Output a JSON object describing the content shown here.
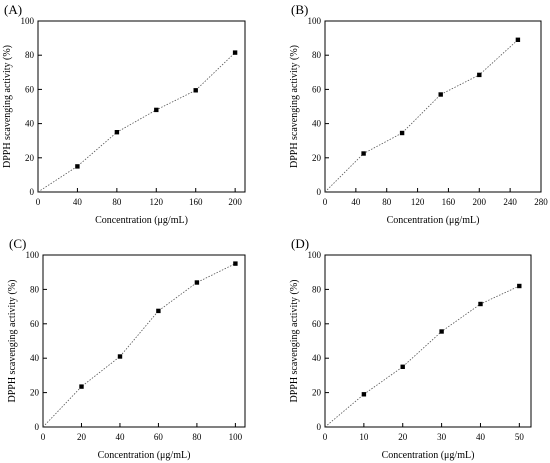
{
  "chart_data": [
    {
      "type": "line",
      "panel_label": "(A)",
      "xlabel": "Concentration (μg/mL)",
      "ylabel": "DPPH scavenging activity (%)",
      "xlim": [
        0,
        210
      ],
      "ylim": [
        0,
        100
      ],
      "xticks": [
        0,
        40,
        80,
        120,
        160,
        200
      ],
      "yticks": [
        0,
        20,
        40,
        60,
        80,
        100
      ],
      "grid": false,
      "marker": "square",
      "line_style": "dotted",
      "series": [
        {
          "x": [
            0,
            40,
            80,
            120,
            160,
            200
          ],
          "y": [
            0,
            15,
            35,
            48,
            59.5,
            81.5
          ]
        }
      ]
    },
    {
      "type": "line",
      "panel_label": "(B)",
      "xlabel": "Concentration (μg/mL)",
      "ylabel": "DPPH scavenging activity (%)",
      "xlim": [
        0,
        280
      ],
      "ylim": [
        0,
        100
      ],
      "xticks": [
        0,
        40,
        80,
        120,
        160,
        200,
        240,
        280
      ],
      "yticks": [
        0,
        20,
        40,
        60,
        80,
        100
      ],
      "grid": false,
      "marker": "square",
      "line_style": "dotted",
      "series": [
        {
          "x": [
            0,
            50,
            100,
            150,
            200,
            250
          ],
          "y": [
            0,
            22.5,
            34.5,
            57,
            68.5,
            89
          ]
        }
      ]
    },
    {
      "type": "line",
      "panel_label": "(C)",
      "xlabel": "Concentration (μg/mL)",
      "ylabel": "DPPH scavenging activity (%)",
      "xlim": [
        0,
        105
      ],
      "ylim": [
        0,
        100
      ],
      "xticks": [
        0,
        20,
        40,
        60,
        80,
        100
      ],
      "yticks": [
        0,
        20,
        40,
        60,
        80,
        100
      ],
      "grid": false,
      "marker": "square",
      "line_style": "dotted",
      "series": [
        {
          "x": [
            0,
            20,
            40,
            60,
            80,
            100
          ],
          "y": [
            0,
            23.5,
            41,
            67.5,
            84,
            95
          ]
        }
      ]
    },
    {
      "type": "line",
      "panel_label": "(D)",
      "xlabel": "Concentration (μg/mL)",
      "ylabel": "DPPH scavenging activity (%)",
      "xlim": [
        0,
        53
      ],
      "ylim": [
        0,
        100
      ],
      "xticks": [
        0,
        10,
        20,
        30,
        40,
        50
      ],
      "yticks": [
        0,
        20,
        40,
        60,
        80,
        100
      ],
      "grid": false,
      "marker": "square",
      "line_style": "dotted",
      "series": [
        {
          "x": [
            0,
            10,
            20,
            30,
            40,
            50
          ],
          "y": [
            0,
            19,
            35,
            55.5,
            71.5,
            82
          ]
        }
      ]
    }
  ]
}
